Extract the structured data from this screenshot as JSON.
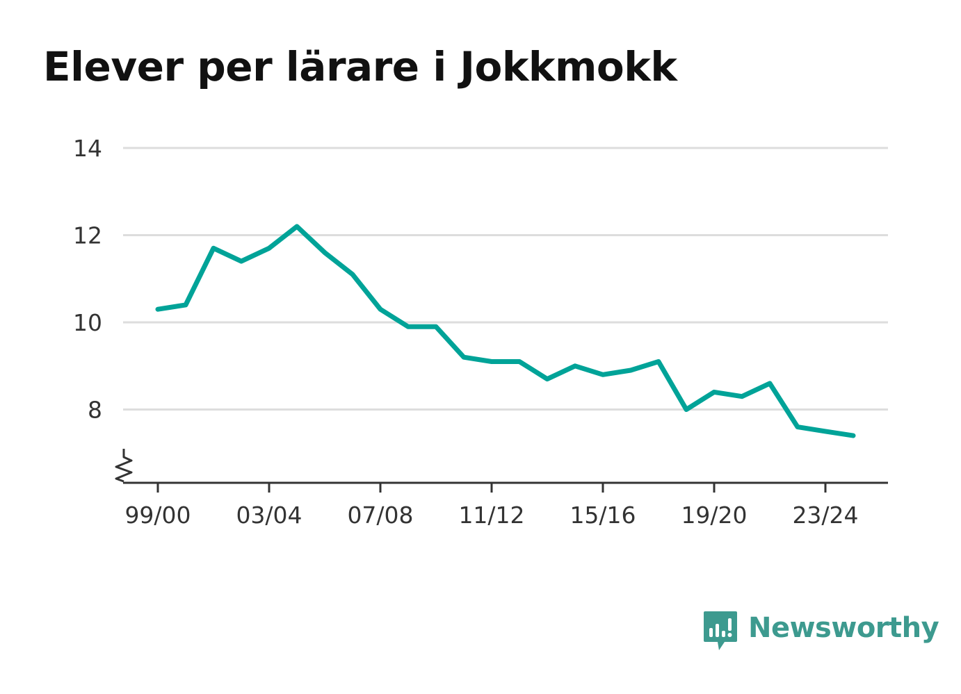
{
  "title": "Elever per lärare i Jokkmokk",
  "brand": {
    "name": "Newsworthy",
    "icon": "newsworthy-logo-icon",
    "color": "#3d9a8f"
  },
  "colors": {
    "line": "#00a398",
    "grid": "#dddddd",
    "axis": "#333333"
  },
  "chart_data": {
    "type": "line",
    "title": "Elever per lärare i Jokkmokk",
    "xlabel": "",
    "ylabel": "",
    "categories": [
      "99/00",
      "00/01",
      "01/02",
      "02/03",
      "03/04",
      "04/05",
      "05/06",
      "06/07",
      "07/08",
      "08/09",
      "09/10",
      "10/11",
      "11/12",
      "12/13",
      "13/14",
      "14/15",
      "15/16",
      "16/17",
      "17/18",
      "18/19",
      "19/20",
      "20/21",
      "21/22",
      "22/23",
      "23/24",
      "24/25"
    ],
    "values": [
      10.3,
      10.4,
      11.7,
      11.4,
      11.7,
      12.2,
      11.6,
      11.1,
      10.3,
      9.9,
      9.9,
      9.2,
      9.1,
      9.1,
      8.7,
      9.0,
      8.8,
      8.9,
      9.1,
      8.0,
      8.4,
      8.3,
      8.6,
      7.6,
      7.5,
      7.4
    ],
    "x_tick_labels": [
      "99/00",
      "03/04",
      "07/08",
      "11/12",
      "15/16",
      "19/20",
      "23/24"
    ],
    "y_ticks": [
      8,
      10,
      12,
      14
    ],
    "ylim": [
      6.3,
      14
    ],
    "y_axis_break": true,
    "grid": true,
    "legend": "none"
  }
}
